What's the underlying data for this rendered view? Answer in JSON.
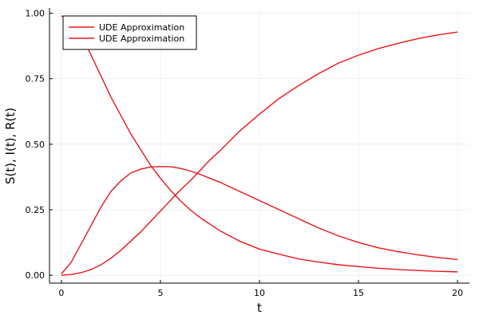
{
  "chart_data": {
    "type": "line",
    "title": "",
    "xlabel": "t",
    "ylabel": "S(t), I(t), R(t)",
    "xlim": [
      -0.6,
      20.6
    ],
    "ylim": [
      -0.03,
      1.02
    ],
    "x_ticks": [
      0,
      5,
      10,
      15,
      20
    ],
    "x_tick_labels": [
      "0",
      "5",
      "10",
      "15",
      "20"
    ],
    "y_ticks": [
      0.0,
      0.25,
      0.5,
      0.75,
      1.0
    ],
    "y_tick_labels": [
      "0.00",
      "0.25",
      "0.50",
      "0.75",
      "1.00"
    ],
    "grid": true,
    "legend_position": "top-left",
    "legend": [
      "UDE Approximation",
      "UDE Approximation"
    ],
    "line_color": "#e8161a",
    "series": [
      {
        "name": "UDE Approximation",
        "x": [
          0,
          0.5,
          1,
          1.5,
          2,
          2.5,
          3,
          3.5,
          4,
          4.5,
          5,
          5.5,
          6,
          6.5,
          7,
          7.5,
          8,
          9,
          10,
          11,
          12,
          13,
          14,
          15,
          16,
          17,
          18,
          19,
          20
        ],
        "values": [
          0.99,
          0.97,
          0.92,
          0.84,
          0.76,
          0.68,
          0.61,
          0.54,
          0.48,
          0.42,
          0.37,
          0.325,
          0.285,
          0.25,
          0.22,
          0.195,
          0.17,
          0.13,
          0.1,
          0.08,
          0.062,
          0.05,
          0.04,
          0.033,
          0.027,
          0.022,
          0.018,
          0.015,
          0.013
        ]
      },
      {
        "name": "",
        "x": [
          0,
          0.5,
          1,
          1.5,
          2,
          2.5,
          3,
          3.5,
          4,
          4.5,
          5,
          5.5,
          6,
          6.5,
          7,
          7.5,
          8,
          9,
          10,
          11,
          12,
          13,
          14,
          15,
          16,
          17,
          18,
          19,
          20
        ],
        "values": [
          0.005,
          0.05,
          0.12,
          0.19,
          0.26,
          0.32,
          0.36,
          0.39,
          0.405,
          0.413,
          0.415,
          0.414,
          0.408,
          0.398,
          0.385,
          0.37,
          0.355,
          0.32,
          0.285,
          0.25,
          0.215,
          0.18,
          0.15,
          0.125,
          0.105,
          0.09,
          0.078,
          0.068,
          0.06
        ]
      },
      {
        "name": "UDE Approximation",
        "x": [
          0,
          0.5,
          1,
          1.5,
          2,
          2.5,
          3,
          3.5,
          4,
          4.5,
          5,
          5.5,
          6,
          6.5,
          7,
          7.5,
          8,
          9,
          10,
          11,
          12,
          13,
          14,
          15,
          16,
          17,
          18,
          19,
          20
        ],
        "values": [
          0.0,
          0.003,
          0.01,
          0.022,
          0.04,
          0.065,
          0.095,
          0.13,
          0.165,
          0.205,
          0.245,
          0.285,
          0.325,
          0.36,
          0.4,
          0.44,
          0.475,
          0.55,
          0.615,
          0.675,
          0.725,
          0.77,
          0.81,
          0.84,
          0.865,
          0.885,
          0.903,
          0.917,
          0.928
        ]
      }
    ]
  }
}
